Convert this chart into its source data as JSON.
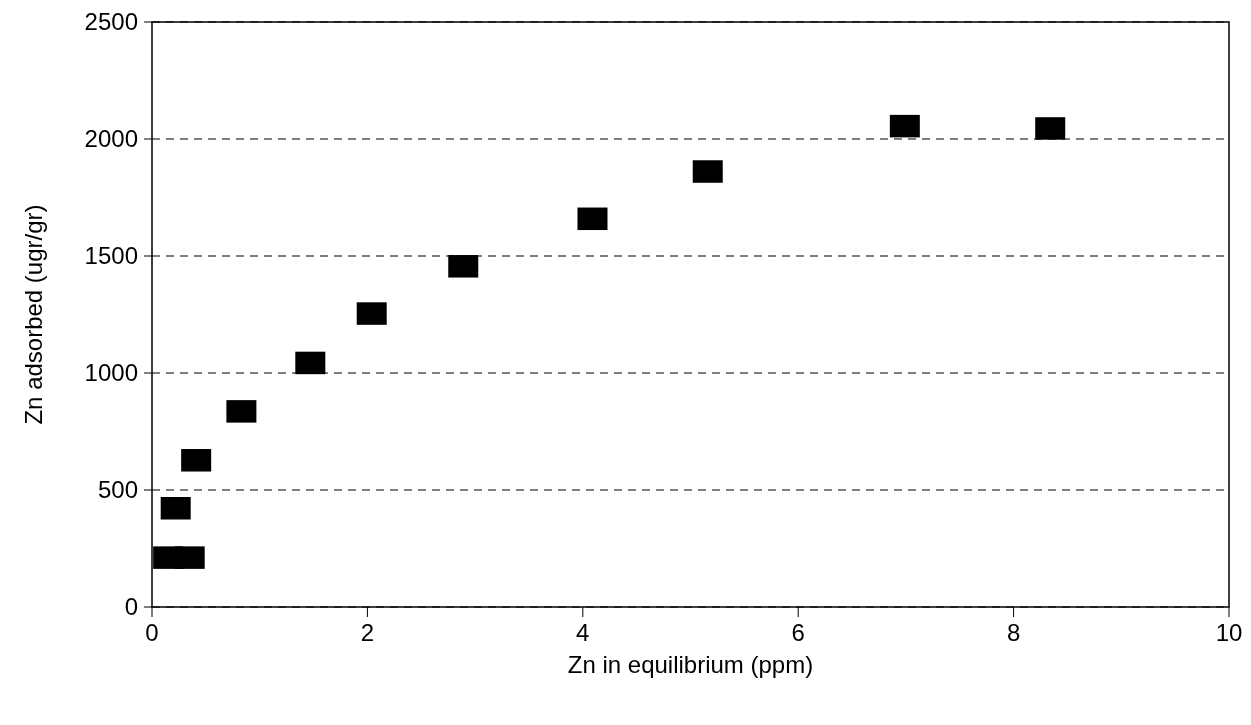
{
  "chart_data": {
    "type": "scatter",
    "xlabel": "Zn in equilibrium (ppm)",
    "ylabel": "Zn adsorbed (ugr/gr)",
    "x": [
      0.15,
      0.35,
      0.22,
      0.41,
      0.83,
      1.47,
      2.04,
      2.89,
      4.09,
      5.16,
      6.99,
      8.34
    ],
    "series": [
      {
        "color": "#000000",
        "values": [
          211,
          211,
          422,
          627,
          836,
          1043,
          1254,
          1456,
          1659,
          1861,
          2055,
          2045
        ]
      }
    ],
    "xlim": [
      0,
      10
    ],
    "xticks": [
      0,
      2,
      4,
      6,
      8,
      10
    ],
    "ylim": [
      0,
      2500
    ],
    "yticks": [
      0,
      500,
      1000,
      1500,
      2000,
      2500
    ],
    "grid": "y",
    "marker": "square"
  }
}
